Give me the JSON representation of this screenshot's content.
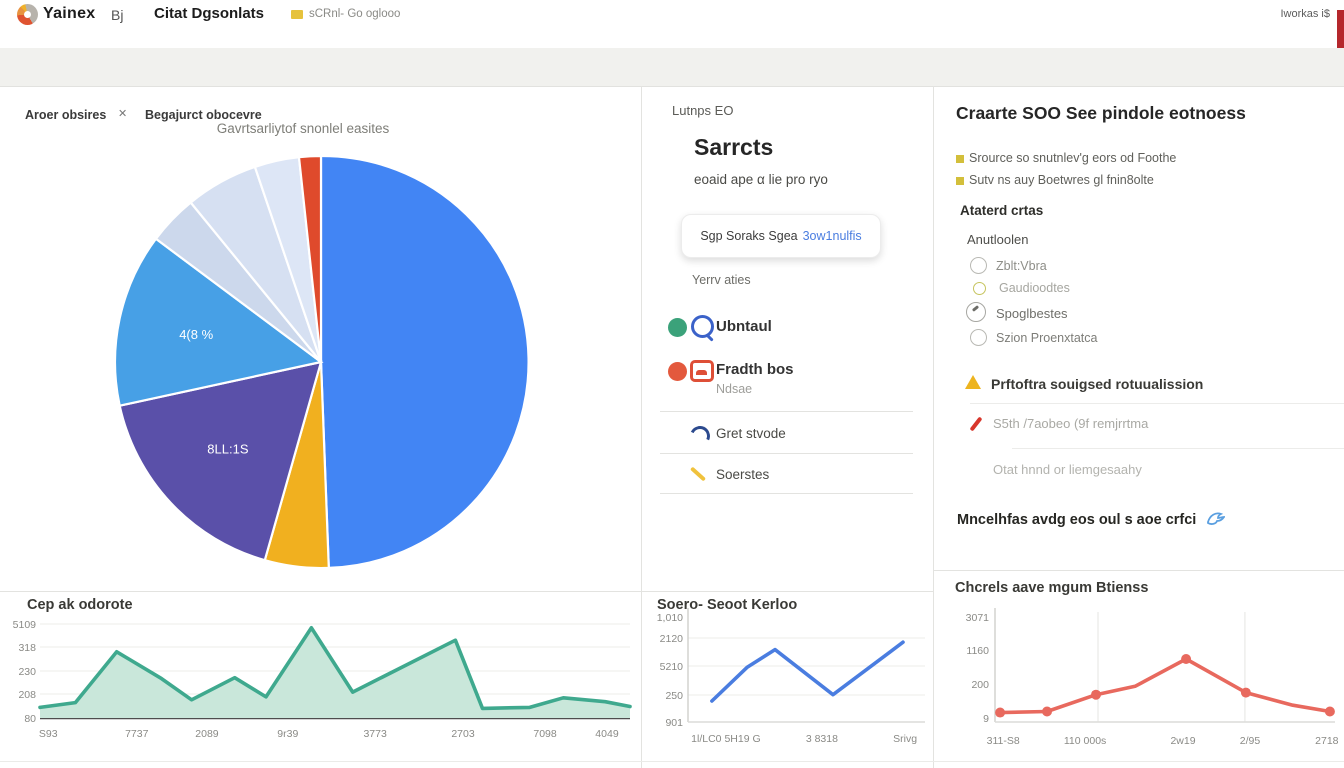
{
  "header": {
    "logo_text": "Yainex",
    "nav_item_1": "Bj",
    "nav_item_2": "Citat Dgsonlats",
    "nav_badge_text": "sCRnl- Go oglooo",
    "right_text": "Iworkas i$"
  },
  "tabbar": {
    "tab_active": "Aroer obsires",
    "close_glyph": "✕",
    "tab_secondary": "Begajurct obocevre"
  },
  "middle": {
    "eyebrow": "Lutnps EO",
    "title": "Sarrcts",
    "subtitle": "eoaid ape α lie pro ryo",
    "button_label": "Sgp Soraks Sgea",
    "button_link": "3ow1nulfis",
    "list_label": "Yerrv aties",
    "item_1_label": "Ubntaul",
    "item_2_label": "Fradth bos",
    "item_2_sub": "Ndsae",
    "item_3_label": "Gret stvode",
    "item_4_label": "Soerstes"
  },
  "right": {
    "title": "Craarte SOO See pindole eotnoess",
    "bullet_1": "Srource so snutnlev'g eors od Foothe",
    "bullet_2": "Sutv ns auy Boetwres gl fnin8olte",
    "section_label": "Ataterd crtas",
    "group_label": "Anutloolen",
    "radio_1": "Zblt:Vbra",
    "radio_2": "Gaudioodtes",
    "radio_3": "Spoglbestes",
    "radio_4": "Szion Proenxtatca",
    "warning_item": "Prftoftra souigsed rotuualission",
    "muted_item_1": "S5th /7aobeo (9f remjrrtma",
    "muted_item_2": "Otat hnnd or liemgesaahy",
    "footer_note": "Mncelhfas avdg eos oul s aoe crfci"
  },
  "chart_data": [
    {
      "type": "pie",
      "title": "Gavrtsarliytof snonlel easites",
      "slices": [
        {
          "label": "",
          "value": 49.4,
          "color": "#4285f4"
        },
        {
          "label": "",
          "value": 5.0,
          "color": "#f1b01f"
        },
        {
          "label": "8LL:1S",
          "value": 17.2,
          "color": "#5a50a9"
        },
        {
          "label": "4(8 %",
          "value": 13.6,
          "color": "#47a0e6"
        },
        {
          "label": "",
          "value": 3.9,
          "color": "#ccd8ec"
        },
        {
          "label": "",
          "value": 5.7,
          "color": "#d6e0f2"
        },
        {
          "label": "",
          "value": 3.5,
          "color": "#dde6f6"
        },
        {
          "label": "",
          "value": 1.7,
          "color": "#df4a2c"
        }
      ]
    },
    {
      "type": "area",
      "title": "Cep ak odorote",
      "color": "#3fa98e",
      "fill": "#c9e7da",
      "ylim": [
        0,
        100
      ],
      "y_ticks": [
        "5109",
        "318",
        "230",
        "208",
        "80"
      ],
      "x_ticks": [
        "S93",
        "7737",
        "2089",
        "9r39",
        "3773",
        "2703",
        "7098",
        "4049"
      ],
      "x_tick_pos": [
        1.4,
        16.4,
        28.3,
        42,
        56.8,
        71.7,
        85.6,
        96.1
      ],
      "x": [
        0,
        6,
        13,
        20.6,
        25.7,
        33,
        38.3,
        46,
        53,
        70.4,
        75,
        83,
        88.7,
        95.8,
        100
      ],
      "values": [
        11,
        16,
        69,
        41,
        19,
        42,
        22,
        94,
        27,
        81,
        10,
        11,
        21,
        17,
        12
      ],
      "markers": false
    },
    {
      "type": "line",
      "title": "Soero- Seoot Kerloo",
      "color": "#4a7de0",
      "ylim": [
        0,
        100
      ],
      "y_ticks": [
        "1,010",
        "2120",
        "5210",
        "250",
        "901"
      ],
      "x_ticks": [
        "1l/LC0 5H19 G",
        "3 8318",
        "Srivg"
      ],
      "x_tick_pos": [
        16,
        56.5,
        91.6
      ],
      "x": [
        10.1,
        24.9,
        36.7,
        61.2,
        90.7
      ],
      "values": [
        20,
        52,
        69,
        26,
        76
      ],
      "markers": false
    },
    {
      "type": "line",
      "title": "Chcrels aave mgum Btienss",
      "color": "#e8695e",
      "ylim": [
        0,
        100
      ],
      "y_ticks": [
        "3071",
        "1160",
        "200",
        "9"
      ],
      "x_ticks": [
        "311-S8",
        "110 000s",
        "2w19",
        "2/95",
        "2718"
      ],
      "x_tick_pos": [
        2.4,
        26.5,
        55.3,
        75,
        97.6
      ],
      "v_grid_pos": [
        30.3,
        73.5
      ],
      "x": [
        1.5,
        15.3,
        29.7,
        41.2,
        56.2,
        73.8,
        87.6,
        98.5
      ],
      "values": [
        9,
        10,
        26,
        34,
        60,
        28,
        16,
        10
      ],
      "marker_idx": [
        0,
        1,
        2,
        4,
        5,
        7
      ],
      "markers": true
    }
  ]
}
